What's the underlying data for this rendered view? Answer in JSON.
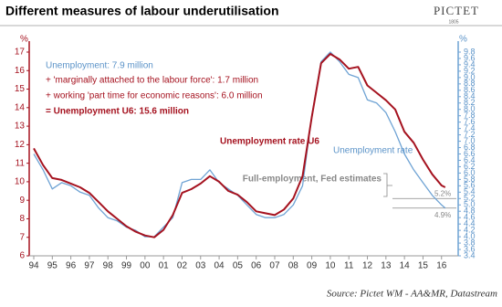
{
  "chart_data": {
    "type": "line",
    "title": "Different measures of labour underutilisation",
    "logo": "PICTET",
    "logo_year": "1805",
    "y_unit": "%",
    "y2_unit": "%",
    "annotations": [
      "Unemployment:  7.9 million",
      "+ 'marginally attached to the labour force': 1.7 million",
      "+ working 'part time for economic reasons': 6.0 million",
      "= Unemployment U6: 15.6 million"
    ],
    "reference_note": "Full-employment, Fed estimates",
    "reference_lines": [
      {
        "value": 5.2,
        "label": "5.2%"
      },
      {
        "value": 4.9,
        "label": "4.9%"
      }
    ],
    "source": "Source: Pictet WM - AA&MR, Datastream",
    "x": [
      1994.0,
      1994.5,
      1995.0,
      1995.5,
      1996.0,
      1996.5,
      1997.0,
      1997.5,
      1998.0,
      1998.5,
      1999.0,
      1999.5,
      2000.0,
      2000.5,
      2001.0,
      2001.5,
      2002.0,
      2002.5,
      2003.0,
      2003.5,
      2004.0,
      2004.5,
      2005.0,
      2005.5,
      2006.0,
      2006.5,
      2007.0,
      2007.5,
      2008.0,
      2008.5,
      2009.0,
      2009.5,
      2010.0,
      2010.5,
      2011.0,
      2011.5,
      2012.0,
      2012.5,
      2013.0,
      2013.5,
      2014.0,
      2014.5,
      2015.0,
      2015.5,
      2016.0,
      2016.2
    ],
    "series": [
      {
        "name": "Unemployment rate U6",
        "color": "#a5121f",
        "axis": "y",
        "values": [
          11.8,
          10.9,
          10.2,
          10.1,
          9.9,
          9.7,
          9.4,
          8.9,
          8.4,
          8.0,
          7.6,
          7.3,
          7.1,
          7.0,
          7.4,
          8.2,
          9.4,
          9.6,
          9.9,
          10.3,
          10.0,
          9.5,
          9.3,
          8.9,
          8.4,
          8.3,
          8.2,
          8.5,
          9.1,
          10.3,
          13.5,
          16.4,
          16.9,
          16.6,
          16.1,
          16.2,
          15.2,
          14.8,
          14.4,
          13.9,
          12.7,
          12.1,
          11.2,
          10.4,
          9.8,
          9.7
        ]
      },
      {
        "name": "Unemployment rate",
        "color": "#6fa3d4",
        "axis": "y2",
        "values": [
          6.6,
          6.1,
          5.5,
          5.7,
          5.6,
          5.4,
          5.3,
          4.9,
          4.6,
          4.5,
          4.3,
          4.2,
          4.0,
          4.0,
          4.3,
          4.6,
          5.7,
          5.8,
          5.8,
          6.1,
          5.7,
          5.5,
          5.3,
          5.0,
          4.7,
          4.6,
          4.6,
          4.7,
          5.0,
          5.6,
          7.8,
          9.5,
          9.8,
          9.5,
          9.1,
          9.0,
          8.3,
          8.2,
          7.9,
          7.3,
          6.6,
          6.1,
          5.7,
          5.3,
          5.0,
          4.9
        ]
      }
    ],
    "xlim": [
      1994,
      2016.8
    ],
    "xticks": [
      {
        "value": 1994,
        "label": "94"
      },
      {
        "value": 1995,
        "label": "95"
      },
      {
        "value": 1996,
        "label": "96"
      },
      {
        "value": 1997,
        "label": "97"
      },
      {
        "value": 1998,
        "label": "98"
      },
      {
        "value": 1999,
        "label": "99"
      },
      {
        "value": 2000,
        "label": "00"
      },
      {
        "value": 2001,
        "label": "01"
      },
      {
        "value": 2002,
        "label": "02"
      },
      {
        "value": 2003,
        "label": "03"
      },
      {
        "value": 2004,
        "label": "04"
      },
      {
        "value": 2005,
        "label": "05"
      },
      {
        "value": 2006,
        "label": "06"
      },
      {
        "value": 2007,
        "label": "07"
      },
      {
        "value": 2008,
        "label": "08"
      },
      {
        "value": 2009,
        "label": "09"
      },
      {
        "value": 2010,
        "label": "10"
      },
      {
        "value": 2011,
        "label": "11"
      },
      {
        "value": 2012,
        "label": "12"
      },
      {
        "value": 2013,
        "label": "13"
      },
      {
        "value": 2014,
        "label": "14"
      },
      {
        "value": 2015,
        "label": "15"
      },
      {
        "value": 2016,
        "label": "16"
      }
    ],
    "ylim": [
      6,
      17
    ],
    "yticks": [
      6,
      7,
      8,
      9,
      10,
      11,
      12,
      13,
      14,
      15,
      16,
      17
    ],
    "y2lim": [
      3.4,
      9.8
    ],
    "y2ticks": [
      3.4,
      3.6,
      3.8,
      {
        "value": 4,
        "label": "4.0"
      },
      4.2,
      4.4,
      4.6,
      4.8,
      {
        "value": 5,
        "label": "5.0"
      },
      5.2,
      5.4,
      5.6,
      5.8,
      {
        "value": 6,
        "label": "6.0"
      },
      6.2,
      6.4,
      6.6,
      6.8,
      {
        "value": 7,
        "label": "7.0"
      },
      7.2,
      7.4,
      7.6,
      7.8,
      {
        "value": 8,
        "label": "8.0"
      },
      8.2,
      8.4,
      8.6,
      8.8,
      {
        "value": 9,
        "label": "9.0"
      },
      9.2,
      9.4,
      9.6,
      9.8
    ]
  }
}
